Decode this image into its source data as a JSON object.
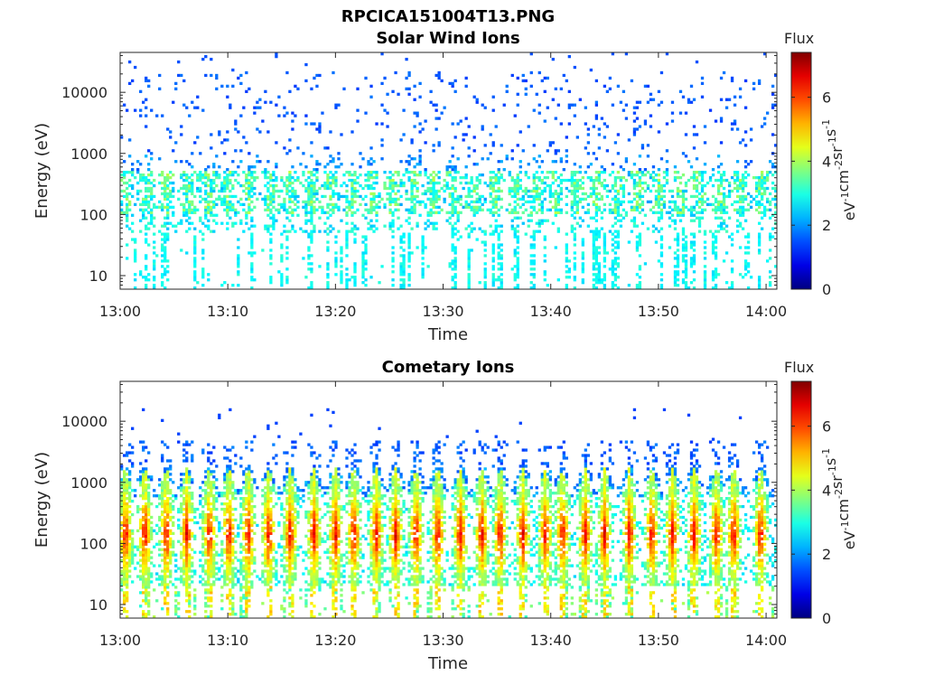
{
  "figure": {
    "title": "RPCICA151004T13.PNG"
  },
  "chart_data": [
    {
      "type": "heatmap",
      "title": "Solar Wind Ions",
      "xlabel": "Time",
      "ylabel": "Energy (eV)",
      "x_ticks": [
        "13:00",
        "13:10",
        "13:20",
        "13:30",
        "13:40",
        "13:50",
        "14:00"
      ],
      "y_ticks": [
        "10",
        "100",
        "1000",
        "10000"
      ],
      "y_scale": "log",
      "ylim": [
        6,
        45000
      ],
      "xlim": [
        "13:00",
        "14:01"
      ],
      "colorbar": {
        "label_title": "Flux",
        "units": "eV-1cm-2sr-1s-1",
        "ticks": [
          0,
          2,
          4,
          6
        ],
        "range": [
          0,
          7.4
        ]
      },
      "description_of_values": "sparse counts at 1000-20000 eV with flux ~1.5; denser cyan/green band 100-500 eV with flux ~2.5-3.5; scattered low-energy streaks below 50 eV"
    },
    {
      "type": "heatmap",
      "title": "Cometary Ions",
      "xlabel": "Time",
      "ylabel": "Energy (eV)",
      "x_ticks": [
        "13:00",
        "13:10",
        "13:20",
        "13:30",
        "13:40",
        "13:50",
        "14:00"
      ],
      "y_ticks": [
        "10",
        "100",
        "1000",
        "10000"
      ],
      "y_scale": "log",
      "ylim": [
        6,
        45000
      ],
      "xlim": [
        "13:00",
        "14:01"
      ],
      "colorbar": {
        "label_title": "Flux",
        "units": "eV-1cm-2sr-1s-1",
        "ticks": [
          0,
          2,
          4,
          6
        ],
        "range": [
          0,
          7.4
        ]
      },
      "bursts_minutes": [
        0.5,
        2.3,
        4.3,
        6.2,
        8.3,
        10.1,
        11.9,
        13.8,
        15.8,
        18.0,
        20.0,
        21.7,
        23.8,
        25.6,
        27.5,
        29.5,
        31.6,
        33.6,
        35.3,
        37.4,
        39.5,
        41.1,
        43.2,
        45.0,
        47.3,
        49.4,
        51.3,
        53.3,
        55.4,
        57.0,
        59.5
      ],
      "description_of_values": "periodic bursts every ~2 min spanning 20-1500 eV, peak flux ~5-6.5 near 100-200 eV"
    }
  ]
}
